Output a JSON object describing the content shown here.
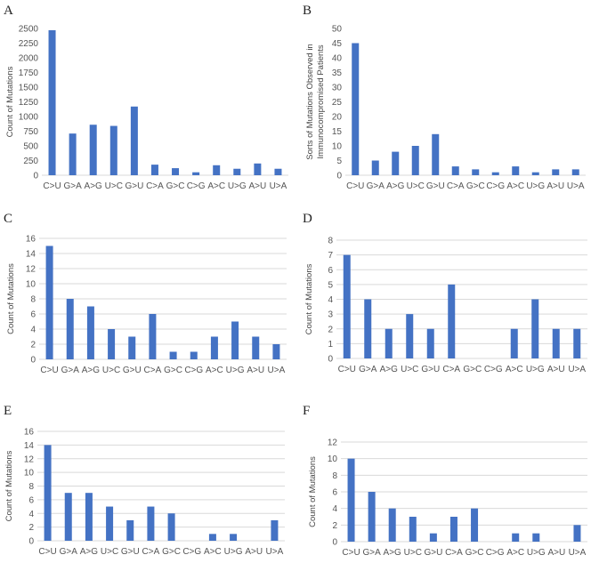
{
  "chart_data": [
    {
      "type": "bar",
      "panel": "A",
      "ylabel": "Count of Mutations",
      "categories": [
        "C>U",
        "G>A",
        "A>G",
        "U>C",
        "G>U",
        "C>A",
        "G>C",
        "C>G",
        "A>C",
        "U>G",
        "A>U",
        "U>A"
      ],
      "values": [
        2470,
        710,
        860,
        840,
        1170,
        180,
        120,
        50,
        170,
        110,
        200,
        110
      ],
      "ylim": [
        0,
        2500
      ],
      "yticks": [
        0,
        250,
        500,
        750,
        1000,
        1250,
        1500,
        1750,
        2000,
        2250,
        2500
      ],
      "grid": false,
      "color": "#4472c4"
    },
    {
      "type": "bar",
      "panel": "B",
      "ylabel": "Sorts of Mutations Observed in Immunocompromised Patients",
      "ylabel_lines": [
        "Sorts of Mutations Observed in",
        "Immunocompromised Patients"
      ],
      "categories": [
        "C>U",
        "G>A",
        "A>G",
        "U>C",
        "G>U",
        "C>A",
        "G>C",
        "C>G",
        "A>C",
        "U>G",
        "A>U",
        "U>A"
      ],
      "values": [
        45,
        5,
        8,
        10,
        14,
        3,
        2,
        1,
        3,
        1,
        2,
        2
      ],
      "ylim": [
        0,
        50
      ],
      "yticks": [
        0,
        5,
        10,
        15,
        20,
        25,
        30,
        35,
        40,
        45,
        50
      ],
      "grid": false,
      "color": "#4472c4"
    },
    {
      "type": "bar",
      "panel": "C",
      "ylabel": "Count of Mutations",
      "categories": [
        "C>U",
        "G>A",
        "A>G",
        "U>C",
        "G>U",
        "C>A",
        "G>C",
        "C>G",
        "A>C",
        "U>G",
        "A>U",
        "U>A"
      ],
      "values": [
        15,
        8,
        7,
        4,
        3,
        6,
        1,
        1,
        3,
        5,
        3,
        2
      ],
      "ylim": [
        0,
        16
      ],
      "yticks": [
        0,
        2,
        4,
        6,
        8,
        10,
        12,
        14,
        16
      ],
      "grid": true,
      "color": "#4472c4"
    },
    {
      "type": "bar",
      "panel": "D",
      "ylabel": "Count of Mutations",
      "categories": [
        "C>U",
        "G>A",
        "A>G",
        "U>C",
        "G>U",
        "C>A",
        "G>C",
        "C>G",
        "A>C",
        "U>G",
        "A>U",
        "U>A"
      ],
      "values": [
        7,
        4,
        2,
        3,
        2,
        5,
        0,
        0,
        2,
        4,
        2,
        2
      ],
      "ylim": [
        0,
        8
      ],
      "yticks": [
        0,
        1,
        2,
        3,
        4,
        5,
        6,
        7,
        8
      ],
      "grid": true,
      "color": "#4472c4"
    },
    {
      "type": "bar",
      "panel": "E",
      "ylabel": "Count of Mutations",
      "categories": [
        "C>U",
        "G>A",
        "A>G",
        "U>C",
        "G>U",
        "C>A",
        "G>C",
        "C>G",
        "A>C",
        "U>G",
        "A>U",
        "U>A"
      ],
      "values": [
        14,
        7,
        7,
        5,
        3,
        5,
        4,
        0,
        1,
        1,
        0,
        3
      ],
      "ylim": [
        0,
        16
      ],
      "yticks": [
        0,
        2,
        4,
        6,
        8,
        10,
        12,
        14,
        16
      ],
      "grid": true,
      "color": "#4472c4"
    },
    {
      "type": "bar",
      "panel": "F",
      "ylabel": "Count of Mutations",
      "categories": [
        "C>U",
        "G>A",
        "A>G",
        "U>C",
        "G>U",
        "C>A",
        "G>C",
        "C>G",
        "A>C",
        "U>G",
        "A>U",
        "U>A"
      ],
      "values": [
        10,
        6,
        4,
        3,
        1,
        3,
        4,
        0,
        1,
        1,
        0,
        2
      ],
      "ylim": [
        0,
        12
      ],
      "yticks": [
        0,
        2,
        4,
        6,
        8,
        10,
        12
      ],
      "grid": true,
      "color": "#4472c4"
    }
  ]
}
